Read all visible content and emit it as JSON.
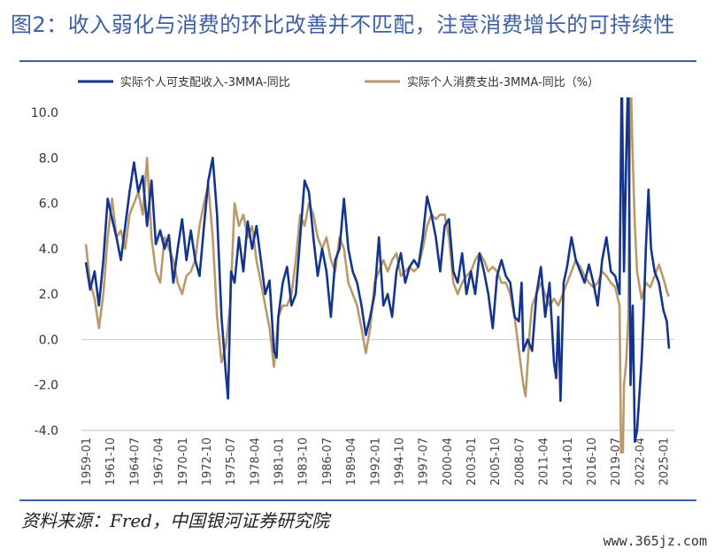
{
  "title": "图2：收入弱化与消费的环比改善并不匹配，注意消费增长的可持续性",
  "source": "资料来源：Fred，中国银河证券研究院",
  "watermark": "www.365jz.com",
  "colors": {
    "accent": "#3c5fa6",
    "income": "#13348f",
    "consumption": "#b99a6a"
  },
  "chart_data": {
    "type": "line",
    "ylim": [
      -4.0,
      10.0
    ],
    "yticks": [
      "10.0",
      "8.0",
      "6.0",
      "4.0",
      "2.0",
      "0.0",
      "-2.0",
      "-4.0"
    ],
    "xticks": [
      "1959-01",
      "1961-10",
      "1964-07",
      "1967-04",
      "1970-01",
      "1972-10",
      "1975-07",
      "1978-04",
      "1981-01",
      "1983-10",
      "1986-07",
      "1989-04",
      "1992-01",
      "1994-10",
      "1997-07",
      "2000-04",
      "2003-01",
      "2005-10",
      "2008-07",
      "2011-04",
      "2014-01",
      "2016-10",
      "2019-07",
      "2022-04",
      "2025-01"
    ],
    "legend_position": "top",
    "grid": false,
    "series": [
      {
        "name": "实际个人可支配收入-3MMA-同比",
        "color": "#13348f",
        "points": [
          [
            1959.0,
            3.4
          ],
          [
            1959.5,
            2.2
          ],
          [
            1960.0,
            3.0
          ],
          [
            1960.5,
            1.5
          ],
          [
            1961.0,
            3.5
          ],
          [
            1961.5,
            6.2
          ],
          [
            1962.0,
            5.3
          ],
          [
            1962.5,
            4.5
          ],
          [
            1963.0,
            3.5
          ],
          [
            1963.5,
            5.0
          ],
          [
            1964.0,
            6.5
          ],
          [
            1964.5,
            7.8
          ],
          [
            1965.0,
            6.5
          ],
          [
            1965.5,
            7.2
          ],
          [
            1966.0,
            5.0
          ],
          [
            1966.5,
            7.0
          ],
          [
            1967.0,
            4.2
          ],
          [
            1967.5,
            4.8
          ],
          [
            1968.0,
            4.0
          ],
          [
            1968.5,
            4.6
          ],
          [
            1969.0,
            2.5
          ],
          [
            1969.5,
            4.0
          ],
          [
            1970.0,
            5.3
          ],
          [
            1970.5,
            3.5
          ],
          [
            1971.0,
            4.8
          ],
          [
            1971.5,
            3.5
          ],
          [
            1972.0,
            2.8
          ],
          [
            1972.5,
            5.0
          ],
          [
            1973.0,
            7.0
          ],
          [
            1973.5,
            8.0
          ],
          [
            1974.0,
            5.5
          ],
          [
            1974.5,
            1.0
          ],
          [
            1975.0,
            -1.5
          ],
          [
            1975.25,
            -2.6
          ],
          [
            1975.6,
            3.0
          ],
          [
            1976.0,
            2.5
          ],
          [
            1976.5,
            4.5
          ],
          [
            1977.0,
            3.0
          ],
          [
            1977.5,
            5.2
          ],
          [
            1978.0,
            4.0
          ],
          [
            1978.5,
            5.0
          ],
          [
            1979.0,
            3.5
          ],
          [
            1979.5,
            2.0
          ],
          [
            1980.0,
            2.6
          ],
          [
            1980.5,
            -0.5
          ],
          [
            1980.8,
            -0.8
          ],
          [
            1981.0,
            1.0
          ],
          [
            1981.5,
            2.5
          ],
          [
            1982.0,
            3.2
          ],
          [
            1982.5,
            1.5
          ],
          [
            1983.0,
            2.0
          ],
          [
            1983.5,
            4.5
          ],
          [
            1984.0,
            7.0
          ],
          [
            1984.5,
            6.5
          ],
          [
            1985.0,
            4.5
          ],
          [
            1985.5,
            2.8
          ],
          [
            1986.0,
            4.0
          ],
          [
            1986.5,
            3.0
          ],
          [
            1987.0,
            1.0
          ],
          [
            1987.5,
            3.5
          ],
          [
            1988.0,
            4.0
          ],
          [
            1988.5,
            6.2
          ],
          [
            1989.0,
            4.0
          ],
          [
            1989.5,
            3.0
          ],
          [
            1990.0,
            2.5
          ],
          [
            1990.5,
            1.5
          ],
          [
            1991.0,
            0.2
          ],
          [
            1991.5,
            1.0
          ],
          [
            1992.0,
            2.0
          ],
          [
            1992.5,
            4.5
          ],
          [
            1993.0,
            1.5
          ],
          [
            1993.5,
            2.0
          ],
          [
            1994.0,
            1.0
          ],
          [
            1994.5,
            3.0
          ],
          [
            1995.0,
            3.8
          ],
          [
            1995.5,
            2.5
          ],
          [
            1996.0,
            3.2
          ],
          [
            1996.5,
            3.5
          ],
          [
            1997.0,
            3.2
          ],
          [
            1997.5,
            4.5
          ],
          [
            1998.0,
            6.3
          ],
          [
            1998.5,
            5.5
          ],
          [
            1999.0,
            4.5
          ],
          [
            1999.5,
            3.0
          ],
          [
            2000.0,
            5.0
          ],
          [
            2000.5,
            5.3
          ],
          [
            2001.0,
            3.0
          ],
          [
            2001.5,
            2.5
          ],
          [
            2002.0,
            3.8
          ],
          [
            2002.5,
            2.0
          ],
          [
            2003.0,
            3.0
          ],
          [
            2003.5,
            2.0
          ],
          [
            2004.0,
            3.8
          ],
          [
            2004.5,
            3.0
          ],
          [
            2005.0,
            2.0
          ],
          [
            2005.5,
            0.5
          ],
          [
            2006.0,
            2.8
          ],
          [
            2006.5,
            3.5
          ],
          [
            2007.0,
            2.8
          ],
          [
            2007.5,
            2.5
          ],
          [
            2008.0,
            1.0
          ],
          [
            2008.5,
            0.8
          ],
          [
            2008.8,
            2.5
          ],
          [
            2009.0,
            -0.5
          ],
          [
            2009.5,
            0.0
          ],
          [
            2010.0,
            -0.5
          ],
          [
            2010.5,
            2.0
          ],
          [
            2011.0,
            3.2
          ],
          [
            2011.5,
            1.0
          ],
          [
            2012.0,
            2.5
          ],
          [
            2012.5,
            -1.0
          ],
          [
            2012.75,
            -1.7
          ],
          [
            2013.0,
            1.0
          ],
          [
            2013.25,
            -2.7
          ],
          [
            2013.6,
            2.5
          ],
          [
            2014.0,
            3.2
          ],
          [
            2014.5,
            4.5
          ],
          [
            2015.0,
            3.5
          ],
          [
            2015.5,
            3.0
          ],
          [
            2016.0,
            2.5
          ],
          [
            2016.5,
            3.3
          ],
          [
            2017.0,
            2.5
          ],
          [
            2017.5,
            1.5
          ],
          [
            2018.0,
            3.5
          ],
          [
            2018.5,
            4.5
          ],
          [
            2019.0,
            3.0
          ],
          [
            2019.5,
            2.8
          ],
          [
            2020.0,
            2.0
          ],
          [
            2020.25,
            12.0
          ],
          [
            2020.5,
            3.0
          ],
          [
            2020.75,
            8.0
          ],
          [
            2021.0,
            12.0
          ],
          [
            2021.25,
            -2.0
          ],
          [
            2021.5,
            1.5
          ],
          [
            2021.75,
            -4.5
          ],
          [
            2022.0,
            -4.0
          ],
          [
            2022.5,
            -1.0
          ],
          [
            2022.75,
            1.0
          ],
          [
            2023.0,
            4.0
          ],
          [
            2023.3,
            6.6
          ],
          [
            2023.6,
            4.0
          ],
          [
            2024.0,
            3.0
          ],
          [
            2024.5,
            2.5
          ],
          [
            2025.0,
            1.3
          ],
          [
            2025.4,
            0.8
          ],
          [
            2025.65,
            -0.4
          ]
        ]
      },
      {
        "name": "实际个人消费支出-3MMA-同比（%）",
        "color": "#b99a6a",
        "points": [
          [
            1959.0,
            4.2
          ],
          [
            1959.5,
            2.5
          ],
          [
            1960.0,
            1.8
          ],
          [
            1960.5,
            0.5
          ],
          [
            1961.0,
            2.0
          ],
          [
            1961.5,
            4.5
          ],
          [
            1962.0,
            6.2
          ],
          [
            1962.5,
            4.5
          ],
          [
            1963.0,
            4.8
          ],
          [
            1963.5,
            4.0
          ],
          [
            1964.0,
            5.5
          ],
          [
            1964.5,
            6.0
          ],
          [
            1965.0,
            6.5
          ],
          [
            1965.5,
            5.5
          ],
          [
            1966.0,
            8.0
          ],
          [
            1966.5,
            4.5
          ],
          [
            1967.0,
            3.0
          ],
          [
            1967.5,
            2.5
          ],
          [
            1968.0,
            4.5
          ],
          [
            1968.5,
            4.0
          ],
          [
            1969.0,
            3.5
          ],
          [
            1969.5,
            2.5
          ],
          [
            1970.0,
            2.0
          ],
          [
            1970.5,
            2.8
          ],
          [
            1971.0,
            3.0
          ],
          [
            1971.5,
            3.5
          ],
          [
            1972.0,
            5.0
          ],
          [
            1972.5,
            6.0
          ],
          [
            1973.0,
            6.8
          ],
          [
            1973.5,
            4.5
          ],
          [
            1974.0,
            1.0
          ],
          [
            1974.5,
            -1.0
          ],
          [
            1975.0,
            -0.3
          ],
          [
            1975.5,
            1.5
          ],
          [
            1976.0,
            6.0
          ],
          [
            1976.5,
            5.0
          ],
          [
            1977.0,
            5.5
          ],
          [
            1977.5,
            4.5
          ],
          [
            1978.0,
            5.0
          ],
          [
            1978.5,
            3.5
          ],
          [
            1979.0,
            2.5
          ],
          [
            1979.5,
            1.5
          ],
          [
            1980.0,
            0.5
          ],
          [
            1980.5,
            -1.2
          ],
          [
            1981.0,
            1.0
          ],
          [
            1981.5,
            1.5
          ],
          [
            1982.0,
            1.5
          ],
          [
            1982.5,
            2.0
          ],
          [
            1983.0,
            3.5
          ],
          [
            1983.5,
            5.5
          ],
          [
            1984.0,
            5.0
          ],
          [
            1984.5,
            6.0
          ],
          [
            1985.0,
            5.5
          ],
          [
            1985.5,
            4.5
          ],
          [
            1986.0,
            4.0
          ],
          [
            1986.5,
            4.5
          ],
          [
            1987.0,
            3.5
          ],
          [
            1987.5,
            3.0
          ],
          [
            1988.0,
            4.5
          ],
          [
            1988.5,
            4.0
          ],
          [
            1989.0,
            2.5
          ],
          [
            1989.5,
            2.0
          ],
          [
            1990.0,
            1.5
          ],
          [
            1990.5,
            0.5
          ],
          [
            1991.0,
            -0.6
          ],
          [
            1991.5,
            0.5
          ],
          [
            1992.0,
            2.5
          ],
          [
            1992.5,
            3.0
          ],
          [
            1993.0,
            3.5
          ],
          [
            1993.5,
            3.0
          ],
          [
            1994.0,
            3.5
          ],
          [
            1994.5,
            3.8
          ],
          [
            1995.0,
            2.8
          ],
          [
            1995.5,
            3.0
          ],
          [
            1996.0,
            3.2
          ],
          [
            1996.5,
            3.0
          ],
          [
            1997.0,
            3.2
          ],
          [
            1997.5,
            4.0
          ],
          [
            1998.0,
            5.0
          ],
          [
            1998.5,
            5.5
          ],
          [
            1999.0,
            5.3
          ],
          [
            1999.5,
            5.5
          ],
          [
            2000.0,
            5.5
          ],
          [
            2000.5,
            4.5
          ],
          [
            2001.0,
            2.5
          ],
          [
            2001.5,
            2.0
          ],
          [
            2002.0,
            2.5
          ],
          [
            2002.5,
            2.8
          ],
          [
            2003.0,
            3.0
          ],
          [
            2003.5,
            3.5
          ],
          [
            2004.0,
            3.8
          ],
          [
            2004.5,
            3.5
          ],
          [
            2005.0,
            3.0
          ],
          [
            2005.5,
            3.2
          ],
          [
            2006.0,
            3.0
          ],
          [
            2006.5,
            2.5
          ],
          [
            2007.0,
            2.5
          ],
          [
            2007.5,
            2.0
          ],
          [
            2008.0,
            1.0
          ],
          [
            2008.5,
            -0.5
          ],
          [
            2009.0,
            -2.0
          ],
          [
            2009.25,
            -2.5
          ],
          [
            2009.75,
            0.5
          ],
          [
            2010.0,
            1.5
          ],
          [
            2010.5,
            2.0
          ],
          [
            2011.0,
            2.5
          ],
          [
            2011.5,
            2.0
          ],
          [
            2012.0,
            1.5
          ],
          [
            2012.5,
            1.8
          ],
          [
            2013.0,
            1.5
          ],
          [
            2013.5,
            2.0
          ],
          [
            2014.0,
            2.5
          ],
          [
            2014.5,
            3.0
          ],
          [
            2015.0,
            3.5
          ],
          [
            2015.5,
            3.2
          ],
          [
            2016.0,
            2.8
          ],
          [
            2016.5,
            2.5
          ],
          [
            2017.0,
            2.3
          ],
          [
            2017.5,
            2.5
          ],
          [
            2018.0,
            3.0
          ],
          [
            2018.5,
            2.8
          ],
          [
            2019.0,
            2.5
          ],
          [
            2019.5,
            2.3
          ],
          [
            2020.0,
            1.5
          ],
          [
            2020.25,
            -8.0
          ],
          [
            2020.5,
            -2.0
          ],
          [
            2020.75,
            -1.0
          ],
          [
            2021.0,
            1.0
          ],
          [
            2021.25,
            12.0
          ],
          [
            2021.5,
            8.0
          ],
          [
            2021.75,
            5.0
          ],
          [
            2022.0,
            3.0
          ],
          [
            2022.5,
            1.8
          ],
          [
            2023.0,
            2.5
          ],
          [
            2023.5,
            2.3
          ],
          [
            2024.0,
            2.8
          ],
          [
            2024.5,
            3.3
          ],
          [
            2025.0,
            2.7
          ],
          [
            2025.5,
            2.0
          ],
          [
            2025.65,
            1.9
          ]
        ]
      }
    ]
  }
}
